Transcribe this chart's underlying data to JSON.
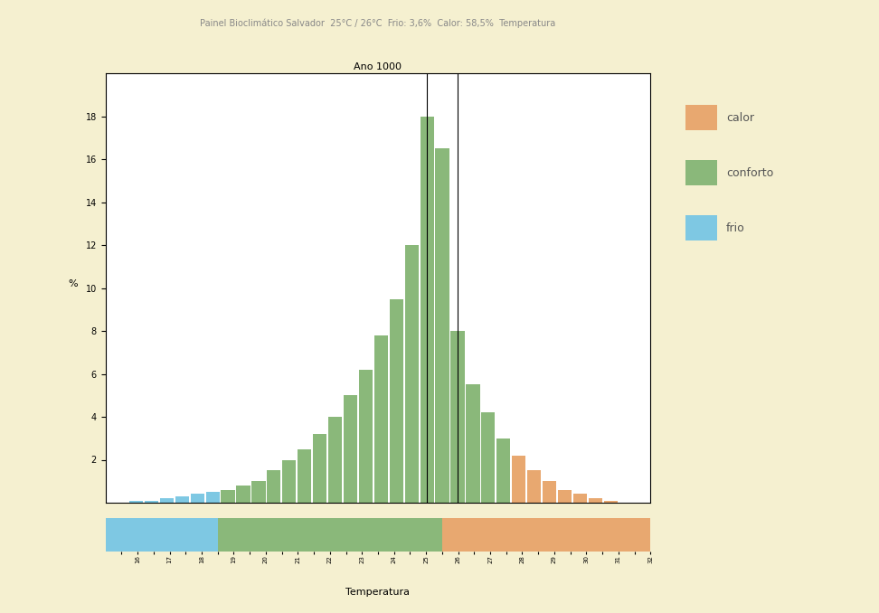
{
  "title": "Ano 1000",
  "xlabel": "Temperatura",
  "ylabel": "%",
  "background_color": "#f5f0d0",
  "bar_background": "#ffffff",
  "temperatures": [
    15.5,
    16.0,
    16.5,
    17.0,
    17.5,
    18.0,
    18.5,
    19.0,
    19.5,
    20.0,
    20.5,
    21.0,
    21.5,
    22.0,
    22.5,
    23.0,
    23.5,
    24.0,
    24.5,
    25.0,
    25.5,
    26.0,
    26.5,
    27.0,
    27.5,
    28.0,
    28.5,
    29.0,
    29.5,
    30.0,
    30.5,
    31.0
  ],
  "values": [
    0.1,
    0.1,
    0.2,
    0.3,
    0.4,
    0.5,
    0.6,
    0.8,
    1.0,
    1.5,
    2.0,
    2.5,
    3.2,
    4.0,
    5.0,
    6.2,
    7.8,
    9.5,
    12.0,
    18.0,
    16.5,
    8.0,
    5.5,
    4.2,
    3.0,
    2.2,
    1.5,
    1.0,
    0.6,
    0.4,
    0.2,
    0.1
  ],
  "categories": [
    "frio",
    "frio",
    "frio",
    "frio",
    "frio",
    "frio",
    "conforto",
    "conforto",
    "conforto",
    "conforto",
    "conforto",
    "conforto",
    "conforto",
    "conforto",
    "conforto",
    "conforto",
    "conforto",
    "conforto",
    "conforto",
    "conforto",
    "conforto",
    "conforto",
    "conforto",
    "conforto",
    "conforto",
    "calor",
    "calor",
    "calor",
    "calor",
    "calor",
    "calor",
    "calor"
  ],
  "color_frio": "#7ec8e3",
  "color_conforto": "#8ab87a",
  "color_calor": "#e8a870",
  "xlim_min": 15.0,
  "xlim_max": 32.0,
  "ylim_min": 0,
  "ylim_max": 20,
  "yticks": [
    2,
    4,
    6,
    8,
    10,
    12,
    14,
    16,
    18
  ],
  "gradient_colors": [
    "#7ec8e3",
    "#8ab87a",
    "#8ab87a",
    "#8ab87a",
    "#e8a870"
  ],
  "panel_bg": "#f5f0d0",
  "legend_calor": "calor",
  "legend_conforto": "conforto",
  "legend_frio": "frio",
  "temp_25": 25,
  "temp_26": 26,
  "frio_pct": 3.6,
  "calor_pct": 58.5
}
